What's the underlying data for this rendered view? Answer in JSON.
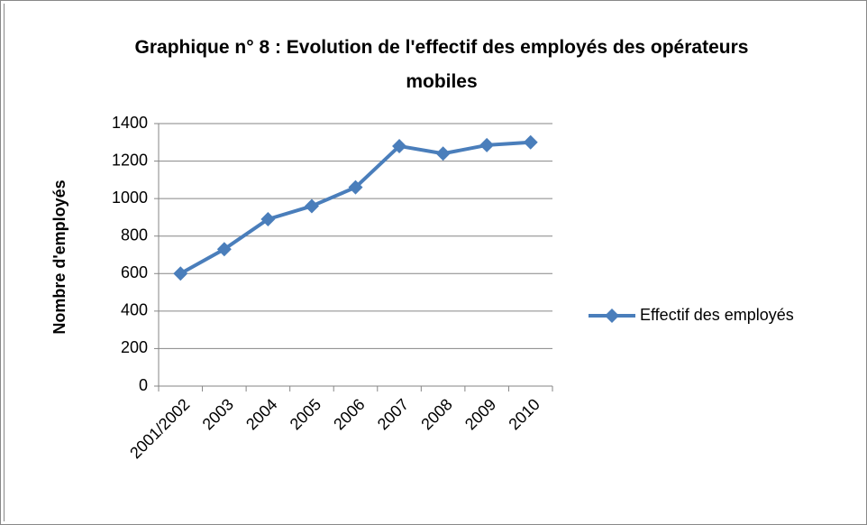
{
  "chart_data": {
    "type": "line",
    "title": "Graphique n° 8 :  Evolution de l'effectif des employés des opérateurs mobiles",
    "y_label": "Nombre d'employés",
    "categories": [
      "2001/2002",
      "2003",
      "2004",
      "2005",
      "2006",
      "2007",
      "2008",
      "2009",
      "2010"
    ],
    "series": [
      {
        "name": "Effectif des employés",
        "color": "#4a7ebb",
        "values": [
          600,
          730,
          890,
          960,
          1060,
          1280,
          1240,
          1285,
          1300
        ]
      }
    ],
    "ylim": [
      0,
      1400
    ],
    "yticks": [
      0,
      200,
      400,
      600,
      800,
      1000,
      1200,
      1400
    ],
    "grid": true,
    "legend": "right"
  }
}
